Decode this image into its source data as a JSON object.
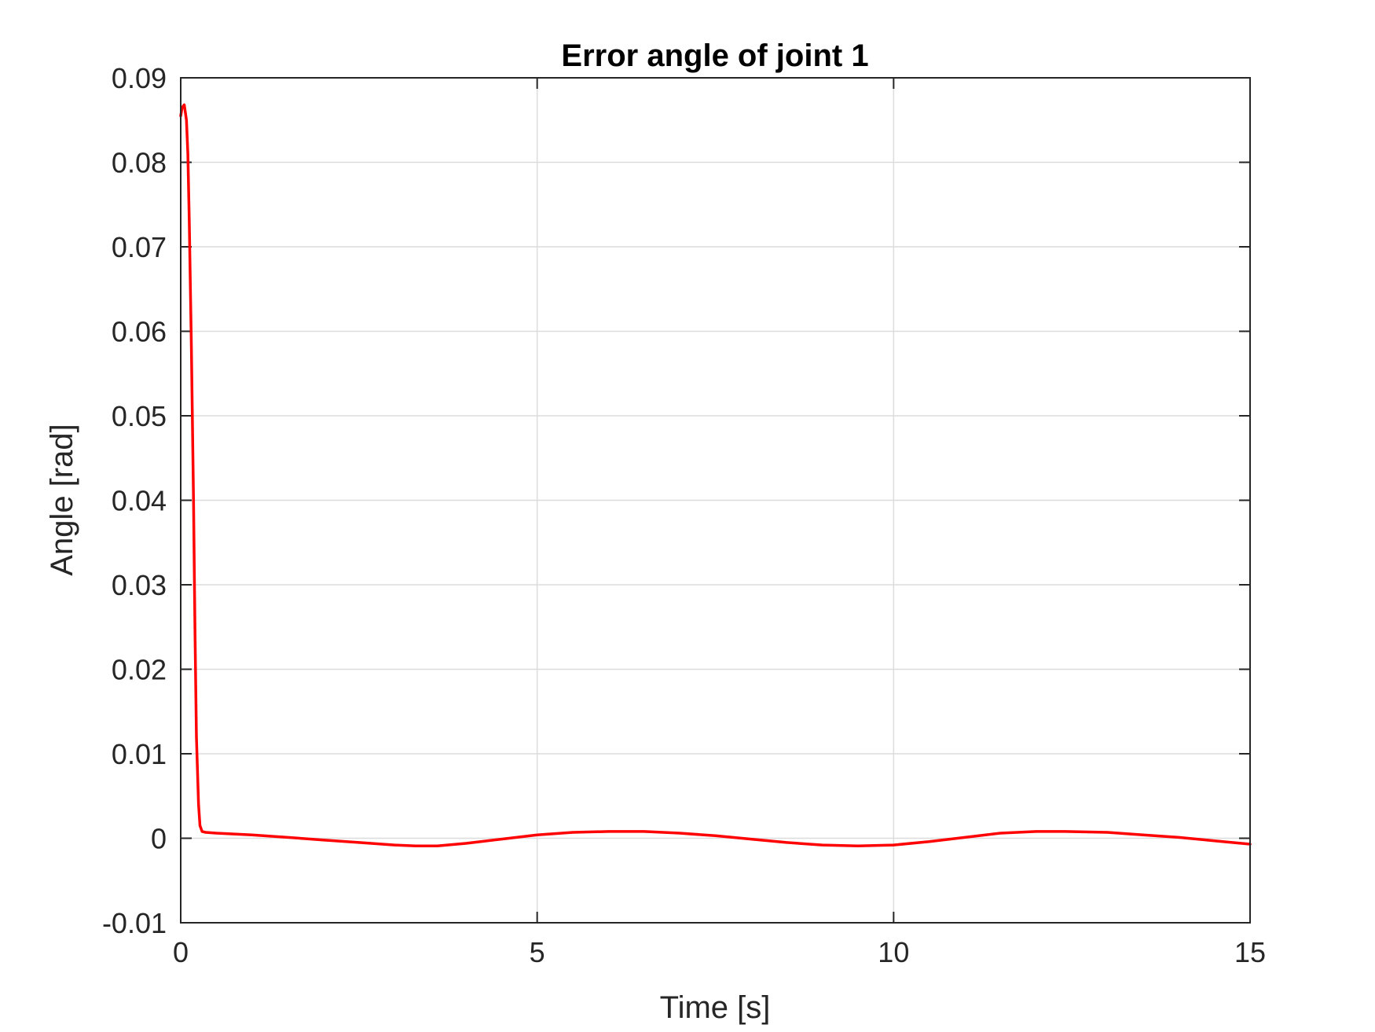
{
  "chart_data": {
    "type": "line",
    "title": "Error angle of joint 1",
    "xlabel": "Time [s]",
    "ylabel": "Angle [rad]",
    "xlim": [
      0,
      15
    ],
    "ylim": [
      -0.01,
      0.09
    ],
    "xticks": [
      0,
      5,
      10,
      15
    ],
    "xtick_labels": [
      "0",
      "5",
      "10",
      "15"
    ],
    "yticks": [
      -0.01,
      0,
      0.01,
      0.02,
      0.03,
      0.04,
      0.05,
      0.06,
      0.07,
      0.08,
      0.09
    ],
    "ytick_labels": [
      "-0.01",
      "0",
      "0.01",
      "0.02",
      "0.03",
      "0.04",
      "0.05",
      "0.06",
      "0.07",
      "0.08",
      "0.09"
    ],
    "grid": true,
    "series": [
      {
        "name": "Error angle of joint 1",
        "color": "#ff0000",
        "x": [
          0,
          0.02,
          0.05,
          0.08,
          0.1,
          0.12,
          0.15,
          0.18,
          0.2,
          0.22,
          0.25,
          0.27,
          0.3,
          0.35,
          0.5,
          1.0,
          1.5,
          2.0,
          2.5,
          3.0,
          3.3,
          3.6,
          4.0,
          4.5,
          5.0,
          5.5,
          6.0,
          6.5,
          7.0,
          7.5,
          8.0,
          8.5,
          9.0,
          9.5,
          10.0,
          10.5,
          11.0,
          11.5,
          12.0,
          12.4,
          13.0,
          13.5,
          14.0,
          14.5,
          15.0
        ],
        "y": [
          0.0855,
          0.0865,
          0.0868,
          0.085,
          0.081,
          0.073,
          0.058,
          0.04,
          0.025,
          0.012,
          0.004,
          0.0015,
          0.0008,
          0.0007,
          0.0006,
          0.0004,
          0.0001,
          -0.0002,
          -0.0005,
          -0.0008,
          -0.0009,
          -0.0009,
          -0.0006,
          -0.0001,
          0.0004,
          0.0007,
          0.0008,
          0.0008,
          0.0006,
          0.0003,
          -0.0001,
          -0.0005,
          -0.0008,
          -0.0009,
          -0.0008,
          -0.0004,
          0.0001,
          0.0006,
          0.0008,
          0.0008,
          0.0007,
          0.0004,
          0.0001,
          -0.0003,
          -0.0007
        ]
      }
    ]
  }
}
